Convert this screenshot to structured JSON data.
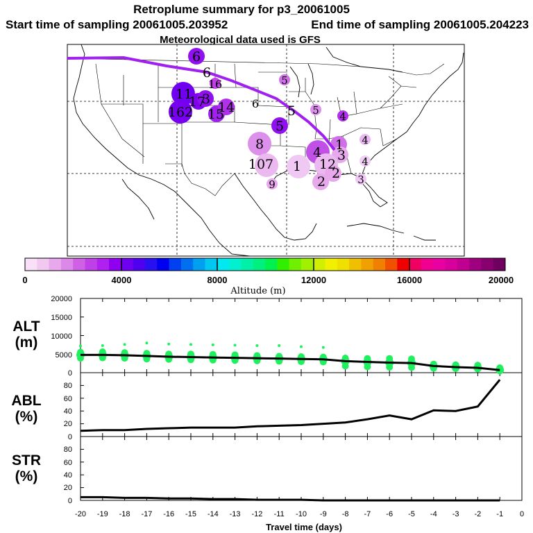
{
  "header": {
    "title": "Retroplume summary for p3_20061005",
    "start_label": "Start time of sampling 20061005.203952",
    "end_label": "End time of sampling 20061005.204223",
    "met_label": "Meteorological data used is GFS"
  },
  "colorbar": {
    "label": "Altitude (m)",
    "ticks": [
      "0",
      "4000",
      "8000",
      "12000",
      "16000",
      "20000"
    ],
    "colors": [
      "#f8e0f8",
      "#f0c8f0",
      "#e8a8ec",
      "#dc88e8",
      "#d060e4",
      "#c040e8",
      "#b020f0",
      "#9000f0",
      "#7000f0",
      "#5000f0",
      "#2810f0",
      "#0000f0",
      "#0040f0",
      "#0070f0",
      "#00a0f0",
      "#00c8f0",
      "#00e8f0",
      "#00f0d0",
      "#00f0a8",
      "#00f080",
      "#00f050",
      "#30f000",
      "#70f000",
      "#a0f000",
      "#d0f000",
      "#f0f000",
      "#f0e000",
      "#f0c000",
      "#f0a000",
      "#f08000",
      "#f05000",
      "#f00000",
      "#f00060",
      "#f00090",
      "#e800a0",
      "#d8009c",
      "#c00090",
      "#a00080",
      "#880070",
      "#700060"
    ]
  },
  "map": {
    "trajectory_color": "#a020f0",
    "labels": [
      {
        "text": "6",
        "color": "#9010f0",
        "size": 2
      },
      {
        "text": "6",
        "color": "",
        "size": 0
      },
      {
        "text": "16",
        "color": "#c040e8",
        "size": 1
      },
      {
        "text": "11",
        "color": "#7000f0",
        "size": 3
      },
      {
        "text": "17",
        "color": "#8000f0",
        "size": 2
      },
      {
        "text": "3",
        "color": "#9010f0",
        "size": 2
      },
      {
        "text": "162",
        "color": "#7800f0",
        "size": 3
      },
      {
        "text": "15",
        "color": "#a020f0",
        "size": 2
      },
      {
        "text": "14",
        "color": "#b030ec",
        "size": 2
      },
      {
        "text": "6",
        "color": "",
        "size": 0
      },
      {
        "text": "5",
        "color": "#d070e8",
        "size": 1
      },
      {
        "text": "5",
        "color": "#dc90ec",
        "size": 1
      },
      {
        "text": "5",
        "color": "",
        "size": 0
      },
      {
        "text": "4",
        "color": "#b030ec",
        "size": 1
      },
      {
        "text": "5",
        "color": "#9010f0",
        "size": 2
      },
      {
        "text": "8",
        "color": "#dc90ec",
        "size": 3
      },
      {
        "text": "4",
        "color": "#c050e8",
        "size": 3
      },
      {
        "text": "1",
        "color": "#d070e8",
        "size": 2
      },
      {
        "text": "3",
        "color": "#e8a8ec",
        "size": 2
      },
      {
        "text": "4",
        "color": "#e8b8f0",
        "size": 1
      },
      {
        "text": "4",
        "color": "#f0d0f4",
        "size": 1
      },
      {
        "text": "107",
        "color": "#ecb8f0",
        "size": 3
      },
      {
        "text": "1",
        "color": "#f0c8f4",
        "size": 3
      },
      {
        "text": "12",
        "color": "#ecb8f0",
        "size": 3
      },
      {
        "text": "2",
        "color": "#e8a8ec",
        "size": 2
      },
      {
        "text": "2",
        "color": "#e8a8ec",
        "size": 2
      },
      {
        "text": "3",
        "color": "#f0c8f4",
        "size": 1
      },
      {
        "text": "9",
        "color": "#e8a8ec",
        "size": 1
      }
    ]
  },
  "chart_data": [
    {
      "type": "line",
      "panel": "ALT",
      "ylabel_line1": "ALT",
      "ylabel_line2": "(m)",
      "ylim": [
        0,
        20000
      ],
      "yticks": [
        "0",
        "5000",
        "10000",
        "15000",
        "20000"
      ],
      "x": [
        -20,
        -19,
        -18,
        -17,
        -16,
        -15,
        -14,
        -13,
        -12,
        -11,
        -10,
        -9,
        -8,
        -7,
        -6,
        -5,
        -4,
        -3,
        -2,
        -1
      ],
      "series": [
        {
          "name": "median altitude",
          "values": [
            4800,
            4800,
            4700,
            4500,
            4300,
            4200,
            4100,
            4000,
            3900,
            3800,
            3700,
            3600,
            3100,
            2900,
            2700,
            2600,
            1800,
            1500,
            1300,
            700
          ]
        },
        {
          "name": "upper plume points",
          "values": [
            7200,
            7300,
            7600,
            8000,
            7700,
            7600,
            7500,
            7400,
            7300,
            7300,
            7000,
            6800,
            4500,
            4200,
            4100,
            4200,
            null,
            null,
            null,
            null
          ]
        },
        {
          "name": "plume spread high",
          "values": [
            5500,
            5600,
            5400,
            5200,
            5000,
            5000,
            4900,
            4800,
            4600,
            4400,
            4300,
            4200,
            3900,
            3800,
            3800,
            3700,
            2300,
            2100,
            2000,
            1300
          ]
        },
        {
          "name": "plume spread low",
          "values": [
            3900,
            4000,
            3900,
            3700,
            3600,
            3500,
            3400,
            3300,
            3200,
            3100,
            3000,
            2900,
            1800,
            1600,
            1500,
            1400,
            1200,
            1100,
            1000,
            600
          ]
        }
      ]
    },
    {
      "type": "line",
      "panel": "ABL",
      "ylabel_line1": "ABL",
      "ylabel_line2": "(%)",
      "ylim": [
        0,
        100
      ],
      "yticks": [
        "0",
        "20",
        "40",
        "60",
        "80"
      ],
      "x": [
        -20,
        -19,
        -18,
        -17,
        -16,
        -15,
        -14,
        -13,
        -12,
        -11,
        -10,
        -9,
        -8,
        -7,
        -6,
        -5,
        -4,
        -3,
        -2,
        -1
      ],
      "series": [
        {
          "name": "ABL fraction",
          "values": [
            9,
            10,
            10,
            12,
            13,
            14,
            14,
            14,
            16,
            17,
            18,
            20,
            22,
            27,
            33,
            27,
            41,
            40,
            47,
            89
          ]
        }
      ]
    },
    {
      "type": "line",
      "panel": "STR",
      "ylabel_line1": "STR",
      "ylabel_line2": "(%)",
      "ylim": [
        0,
        100
      ],
      "yticks": [
        "0",
        "20",
        "40",
        "60",
        "80"
      ],
      "xlabel": "Travel time (days)",
      "xticks": [
        "-20",
        "-19",
        "-18",
        "-17",
        "-16",
        "-15",
        "-14",
        "-13",
        "-12",
        "-11",
        "-10",
        "-9",
        "-8",
        "-7",
        "-6",
        "-5",
        "-4",
        "-3",
        "-2",
        "-1",
        "0"
      ],
      "x": [
        -20,
        -19,
        -18,
        -17,
        -16,
        -15,
        -14,
        -13,
        -12,
        -11,
        -10,
        -9,
        -8,
        -7,
        -6,
        -5,
        -4,
        -3,
        -2,
        -1
      ],
      "series": [
        {
          "name": "STR fraction",
          "values": [
            5,
            5,
            4,
            4,
            3,
            3,
            2,
            2,
            1,
            1,
            1,
            0,
            0,
            0,
            0,
            0,
            0,
            0,
            0,
            0
          ]
        }
      ]
    }
  ]
}
